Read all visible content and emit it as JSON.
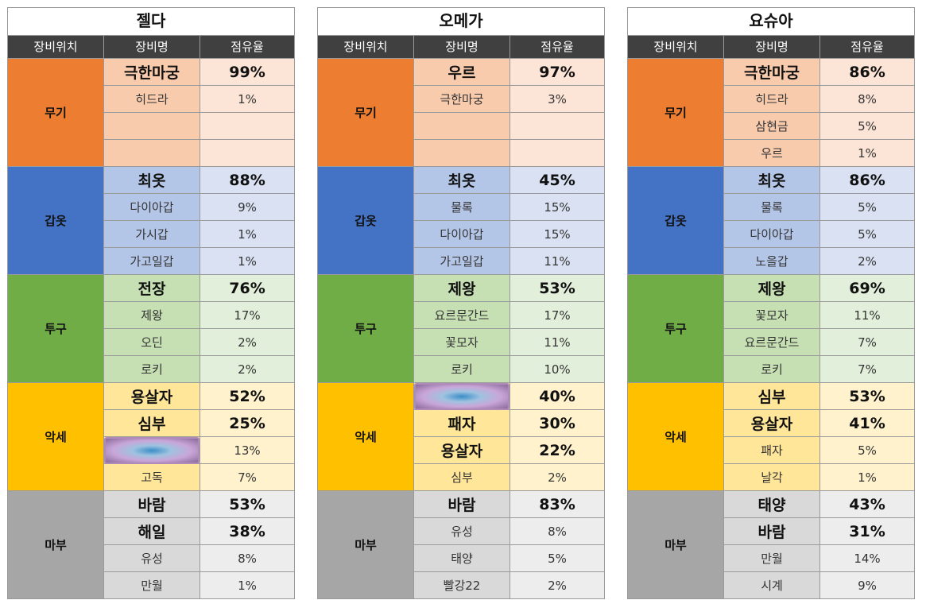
{
  "colors": {
    "weapon_pos": "#ed7d31",
    "weapon_name": "#f8cbad",
    "weapon_pct": "#fce4d6",
    "armor_pos": "#4472c4",
    "armor_name": "#b4c6e7",
    "armor_pct": "#d9e1f2",
    "helm_pos": "#70ad47",
    "helm_name": "#c6e0b4",
    "helm_pct": "#e2efda",
    "acc_pos": "#ffc000",
    "acc_name": "#ffe699",
    "acc_pct": "#fff2cc",
    "spell_pos": "#a6a6a6",
    "spell_name": "#d9d9d9",
    "spell_pct": "#ededed"
  },
  "tables": [
    {
      "title": "젤다",
      "headers": [
        "장비위치",
        "장비명",
        "점유율"
      ],
      "groups": [
        {
          "position": "무기",
          "rows": [
            {
              "name": "극한마궁",
              "pct": "99%",
              "big": true
            },
            {
              "name": "히드라",
              "pct": "1%"
            },
            {
              "name": "",
              "pct": ""
            },
            {
              "name": "",
              "pct": ""
            }
          ]
        },
        {
          "position": "갑옷",
          "rows": [
            {
              "name": "최옷",
              "pct": "88%",
              "big": true
            },
            {
              "name": "다이아갑",
              "pct": "9%"
            },
            {
              "name": "가시갑",
              "pct": "1%"
            },
            {
              "name": "가고일갑",
              "pct": "1%"
            }
          ]
        },
        {
          "position": "투구",
          "rows": [
            {
              "name": "전장",
              "pct": "76%",
              "big": true
            },
            {
              "name": "제왕",
              "pct": "17%"
            },
            {
              "name": "오딘",
              "pct": "2%"
            },
            {
              "name": "로키",
              "pct": "2%"
            }
          ]
        },
        {
          "position": "악세",
          "rows": [
            {
              "name": "용살자",
              "pct": "52%",
              "big": true
            },
            {
              "name": "심부",
              "pct": "25%",
              "big": true
            },
            {
              "name": "",
              "pct": "13%",
              "image": "item-thumbnail"
            },
            {
              "name": "고독",
              "pct": "7%"
            }
          ]
        },
        {
          "position": "마부",
          "rows": [
            {
              "name": "바람",
              "pct": "53%",
              "big": true
            },
            {
              "name": "해일",
              "pct": "38%",
              "big": true
            },
            {
              "name": "유성",
              "pct": "8%"
            },
            {
              "name": "만월",
              "pct": "1%"
            }
          ]
        }
      ]
    },
    {
      "title": "오메가",
      "headers": [
        "장비위치",
        "장비명",
        "점유율"
      ],
      "groups": [
        {
          "position": "무기",
          "rows": [
            {
              "name": "우르",
              "pct": "97%",
              "big": true
            },
            {
              "name": "극한마궁",
              "pct": "3%"
            },
            {
              "name": "",
              "pct": ""
            },
            {
              "name": "",
              "pct": ""
            }
          ]
        },
        {
          "position": "갑옷",
          "rows": [
            {
              "name": "최옷",
              "pct": "45%",
              "big": true
            },
            {
              "name": "물록",
              "pct": "15%"
            },
            {
              "name": "다이아갑",
              "pct": "15%"
            },
            {
              "name": "가고일갑",
              "pct": "11%"
            }
          ]
        },
        {
          "position": "투구",
          "rows": [
            {
              "name": "제왕",
              "pct": "53%",
              "big": true
            },
            {
              "name": "요르문간드",
              "pct": "17%"
            },
            {
              "name": "꽃모자",
              "pct": "11%"
            },
            {
              "name": "로키",
              "pct": "10%"
            }
          ]
        },
        {
          "position": "악세",
          "rows": [
            {
              "name": "",
              "pct": "40%",
              "big": true,
              "image": "item-thumbnail"
            },
            {
              "name": "패자",
              "pct": "30%",
              "big": true
            },
            {
              "name": "용살자",
              "pct": "22%",
              "big": true
            },
            {
              "name": "심부",
              "pct": "2%"
            }
          ]
        },
        {
          "position": "마부",
          "rows": [
            {
              "name": "바람",
              "pct": "83%",
              "big": true
            },
            {
              "name": "유성",
              "pct": "8%"
            },
            {
              "name": "태양",
              "pct": "5%"
            },
            {
              "name": "빨강22",
              "pct": "2%"
            }
          ]
        }
      ]
    },
    {
      "title": "요슈아",
      "headers": [
        "장비위치",
        "장비명",
        "점유율"
      ],
      "groups": [
        {
          "position": "무기",
          "rows": [
            {
              "name": "극한마궁",
              "pct": "86%",
              "big": true
            },
            {
              "name": "히드라",
              "pct": "8%"
            },
            {
              "name": "삼현금",
              "pct": "5%"
            },
            {
              "name": "우르",
              "pct": "1%"
            }
          ]
        },
        {
          "position": "갑옷",
          "rows": [
            {
              "name": "최옷",
              "pct": "86%",
              "big": true
            },
            {
              "name": "물록",
              "pct": "5%"
            },
            {
              "name": "다이아갑",
              "pct": "5%"
            },
            {
              "name": "노을갑",
              "pct": "2%"
            }
          ]
        },
        {
          "position": "투구",
          "rows": [
            {
              "name": "제왕",
              "pct": "69%",
              "big": true
            },
            {
              "name": "꽃모자",
              "pct": "11%"
            },
            {
              "name": "요르문간드",
              "pct": "7%"
            },
            {
              "name": "로키",
              "pct": "7%"
            }
          ]
        },
        {
          "position": "악세",
          "rows": [
            {
              "name": "심부",
              "pct": "53%",
              "big": true
            },
            {
              "name": "용살자",
              "pct": "41%",
              "big": true
            },
            {
              "name": "패자",
              "pct": "5%"
            },
            {
              "name": "날각",
              "pct": "1%"
            }
          ]
        },
        {
          "position": "마부",
          "rows": [
            {
              "name": "태양",
              "pct": "43%",
              "big": true
            },
            {
              "name": "바람",
              "pct": "31%",
              "big": true
            },
            {
              "name": "만월",
              "pct": "14%"
            },
            {
              "name": "시계",
              "pct": "9%"
            }
          ]
        }
      ]
    }
  ]
}
